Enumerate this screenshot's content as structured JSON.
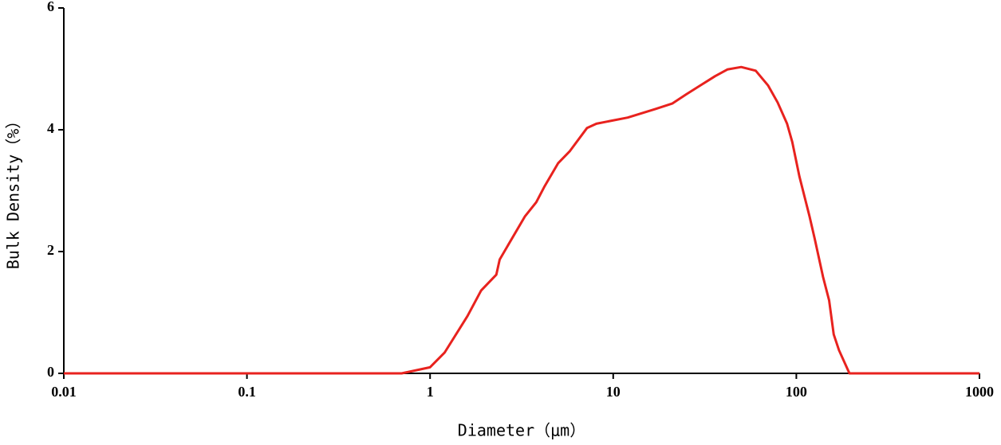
{
  "chart_data": {
    "type": "line",
    "x_label": "Diameter（μm）",
    "y_label": "Bulk Density（%）",
    "x_scale": "log",
    "x": [
      0.01,
      0.7,
      1.0,
      1.2,
      1.6,
      1.9,
      2.3,
      2.4,
      3.3,
      3.8,
      4.2,
      5.0,
      5.8,
      7.2,
      8.1,
      12,
      17,
      21,
      25,
      30,
      36,
      42,
      50,
      60,
      70,
      79,
      89,
      95,
      104,
      118,
      126,
      140,
      151,
      160,
      171,
      195,
      1000
    ],
    "series": [
      {
        "name": "Bulk Density",
        "color": "#e8221e",
        "values": [
          0,
          0,
          0.1,
          0.34,
          0.94,
          1.36,
          1.62,
          1.87,
          2.58,
          2.81,
          3.06,
          3.45,
          3.65,
          4.03,
          4.1,
          4.2,
          4.34,
          4.43,
          4.58,
          4.73,
          4.88,
          4.99,
          5.03,
          4.97,
          4.73,
          4.45,
          4.1,
          3.8,
          3.23,
          2.58,
          2.21,
          1.58,
          1.2,
          0.64,
          0.38,
          0,
          0
        ]
      }
    ],
    "xlim": [
      0.01,
      1000
    ],
    "xticks": [
      0.01,
      0.1,
      1,
      10,
      100,
      1000
    ],
    "ylim": [
      0,
      6
    ],
    "yticks": [
      0,
      2,
      4,
      6
    ]
  }
}
